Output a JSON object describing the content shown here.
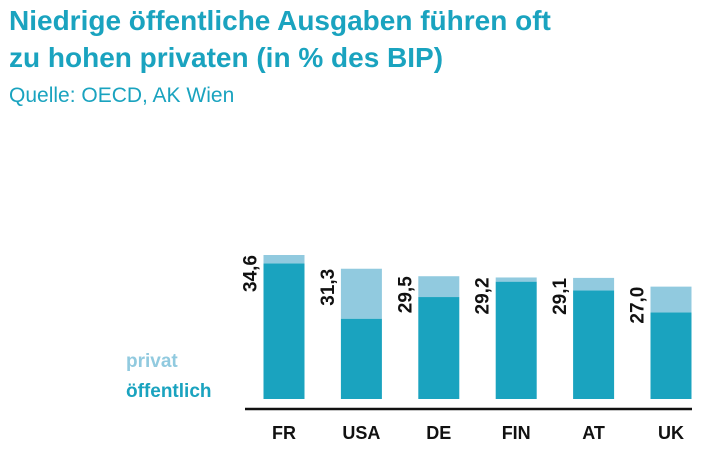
{
  "header": {
    "title_line1": "Niedrige öffentliche Ausgaben führen oft",
    "title_line2": "zu hohen privaten (in % des BIP)",
    "source": "Quelle: OECD, AK Wien"
  },
  "legend": {
    "privat_label": "privat",
    "oeffentlich_label": "öffentlich"
  },
  "colors": {
    "accent": "#1aa3bf",
    "privat": "#91cadf",
    "oeffentlich": "#1aa3bf",
    "text": "#111111",
    "axis": "#111111"
  },
  "chart_data": {
    "type": "bar",
    "stacked": true,
    "categories": [
      "FR",
      "USA",
      "DE",
      "FIN",
      "AT",
      "UK"
    ],
    "totals_labels": [
      "34,6",
      "31,3",
      "29,5",
      "29,2",
      "29,1",
      "27,0"
    ],
    "series": [
      {
        "name": "öffentlich",
        "values": [
          32.6,
          19.3,
          24.5,
          28.2,
          26.1,
          20.8
        ]
      },
      {
        "name": "privat",
        "values": [
          2.0,
          12.0,
          5.0,
          1.0,
          3.0,
          6.2
        ]
      }
    ],
    "ylim": [
      0,
      34.6
    ],
    "legend_position": "left",
    "grid": false
  }
}
